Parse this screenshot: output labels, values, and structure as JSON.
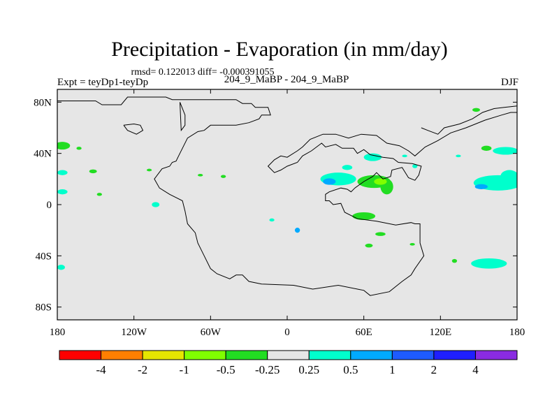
{
  "title": "Precipitation - Evaporation (in mm/day)",
  "stats": "rmsd= 0.122013 diff= -0.000391055",
  "subtitle_left": "Expt = teyDp1-teyDp",
  "subtitle_center": "204_9_MaBP - 204_9_MaBP",
  "subtitle_right": "DJF",
  "map": {
    "lon_range": [
      -180,
      180
    ],
    "lat_range": [
      -90,
      90
    ],
    "x_ticks": [
      {
        "value": -180,
        "label": "180"
      },
      {
        "value": -120,
        "label": "120W"
      },
      {
        "value": -60,
        "label": "60W"
      },
      {
        "value": 0,
        "label": "0"
      },
      {
        "value": 60,
        "label": "60E"
      },
      {
        "value": 120,
        "label": "120E"
      },
      {
        "value": 180,
        "label": "180"
      }
    ],
    "y_ticks": [
      {
        "value": 80,
        "label": "80N"
      },
      {
        "value": 40,
        "label": "40N"
      },
      {
        "value": 0,
        "label": "0"
      },
      {
        "value": -40,
        "label": "40S"
      },
      {
        "value": -80,
        "label": "80S"
      }
    ],
    "background_color": "#e6e6e6"
  },
  "colorbar": {
    "colors": [
      "#ff0000",
      "#ff7f00",
      "#e6e600",
      "#80ff00",
      "#22dd22",
      "#e6e6e6",
      "#00ffcc",
      "#00aaff",
      "#1e5bff",
      "#1f1fff",
      "#8a2be2"
    ],
    "labels": [
      "-4",
      "-2",
      "-1",
      "-0.5",
      "-0.25",
      "0.25",
      "0.5",
      "1",
      "2",
      "4"
    ]
  },
  "anomalies": [
    {
      "lon": -176,
      "lat": 46,
      "rx": 6,
      "ry": 3,
      "color": "#22dd22"
    },
    {
      "lon": -163,
      "lat": 44,
      "rx": 2,
      "ry": 1.2,
      "color": "#22dd22"
    },
    {
      "lon": -176,
      "lat": 25,
      "rx": 4,
      "ry": 2,
      "color": "#00ffcc"
    },
    {
      "lon": -176,
      "lat": 10,
      "rx": 4,
      "ry": 2,
      "color": "#00ffcc"
    },
    {
      "lon": -152,
      "lat": 26,
      "rx": 3,
      "ry": 1.5,
      "color": "#22dd22"
    },
    {
      "lon": -147,
      "lat": 8,
      "rx": 2,
      "ry": 1.2,
      "color": "#22dd22"
    },
    {
      "lon": -108,
      "lat": 27,
      "rx": 2,
      "ry": 1,
      "color": "#22dd22"
    },
    {
      "lon": -68,
      "lat": 23,
      "rx": 2,
      "ry": 1,
      "color": "#22dd22"
    },
    {
      "lon": -50,
      "lat": 22,
      "rx": 2,
      "ry": 1.2,
      "color": "#22dd22"
    },
    {
      "lon": -103,
      "lat": 0,
      "rx": 3,
      "ry": 2,
      "color": "#00ffcc"
    },
    {
      "lon": -12,
      "lat": -12,
      "rx": 2,
      "ry": 1.2,
      "color": "#00ffcc"
    },
    {
      "lon": 8,
      "lat": -20,
      "rx": 2,
      "ry": 2,
      "color": "#00aaff"
    },
    {
      "lon": 40,
      "lat": 20,
      "rx": 14,
      "ry": 5,
      "color": "#00ffcc"
    },
    {
      "lon": 33,
      "lat": 18,
      "rx": 5,
      "ry": 2.5,
      "color": "#00aaff"
    },
    {
      "lon": 47,
      "lat": 29,
      "rx": 4,
      "ry": 2,
      "color": "#00ffcc"
    },
    {
      "lon": 67,
      "lat": 37,
      "rx": 7,
      "ry": 3,
      "color": "#00ffcc"
    },
    {
      "lon": 68,
      "lat": 18,
      "rx": 13,
      "ry": 5,
      "color": "#22dd22"
    },
    {
      "lon": 78,
      "lat": 14,
      "rx": 5,
      "ry": 6,
      "color": "#22dd22"
    },
    {
      "lon": 73,
      "lat": 18,
      "rx": 5,
      "ry": 2.5,
      "color": "#80ff00"
    },
    {
      "lon": 60,
      "lat": -9,
      "rx": 9,
      "ry": 3,
      "color": "#22dd22"
    },
    {
      "lon": 73,
      "lat": -23,
      "rx": 4,
      "ry": 1.5,
      "color": "#22dd22"
    },
    {
      "lon": 64,
      "lat": -32,
      "rx": 3,
      "ry": 1.5,
      "color": "#22dd22"
    },
    {
      "lon": 98,
      "lat": -31,
      "rx": 2,
      "ry": 1,
      "color": "#22dd22"
    },
    {
      "lon": 131,
      "lat": -44,
      "rx": 2,
      "ry": 1.5,
      "color": "#22dd22"
    },
    {
      "lon": 158,
      "lat": -46,
      "rx": 14,
      "ry": 4,
      "color": "#00ffcc"
    },
    {
      "lon": -177,
      "lat": -49,
      "rx": 3,
      "ry": 2,
      "color": "#00ffcc"
    },
    {
      "lon": 165,
      "lat": 17,
      "rx": 19,
      "ry": 6,
      "color": "#00ffcc"
    },
    {
      "lon": 174,
      "lat": 22,
      "rx": 7,
      "ry": 5,
      "color": "#00ffcc"
    },
    {
      "lon": 152,
      "lat": 14,
      "rx": 5,
      "ry": 2,
      "color": "#00aaff"
    },
    {
      "lon": 171,
      "lat": 42,
      "rx": 10,
      "ry": 3,
      "color": "#00ffcc"
    },
    {
      "lon": 156,
      "lat": 44,
      "rx": 4,
      "ry": 2,
      "color": "#22dd22"
    },
    {
      "lon": 148,
      "lat": 74,
      "rx": 3,
      "ry": 1.5,
      "color": "#22dd22"
    },
    {
      "lon": 134,
      "lat": 38,
      "rx": 2,
      "ry": 1,
      "color": "#00ffcc"
    },
    {
      "lon": 92,
      "lat": 38,
      "rx": 2,
      "ry": 1,
      "color": "#00ffcc"
    },
    {
      "lon": 100,
      "lat": 30,
      "rx": 2,
      "ry": 1.5,
      "color": "#00ffcc"
    }
  ],
  "coastline": [
    [
      -180,
      81
    ],
    [
      -150,
      81
    ],
    [
      -145,
      78
    ],
    [
      -130,
      78
    ],
    [
      -125,
      84
    ],
    [
      -95,
      84
    ],
    [
      -90,
      82
    ],
    [
      -40,
      82
    ],
    [
      -35,
      79
    ],
    [
      -28,
      79
    ],
    [
      -25,
      76
    ],
    [
      -15,
      76
    ],
    [
      -13,
      70
    ],
    [
      -20,
      70
    ],
    [
      -22,
      67
    ],
    [
      -30,
      64
    ],
    [
      -40,
      62
    ],
    [
      -60,
      62
    ],
    [
      -65,
      58
    ],
    [
      -70,
      57
    ],
    [
      -78,
      52
    ],
    [
      -82,
      44
    ],
    [
      -85,
      38
    ],
    [
      -87,
      34
    ],
    [
      -90,
      33
    ],
    [
      -92,
      30
    ],
    [
      -98,
      28
    ],
    [
      -104,
      20
    ],
    [
      -100,
      13
    ],
    [
      -92,
      8
    ],
    [
      -82,
      3
    ],
    [
      -80,
      -5
    ],
    [
      -78,
      -15
    ],
    [
      -72,
      -22
    ],
    [
      -70,
      -30
    ],
    [
      -65,
      -40
    ],
    [
      -60,
      -50
    ],
    [
      -55,
      -54
    ],
    [
      -45,
      -58
    ],
    [
      -40,
      -55
    ],
    [
      -35,
      -55
    ],
    [
      -30,
      -60
    ],
    [
      -20,
      -62
    ],
    [
      5,
      -63
    ],
    [
      20,
      -66
    ],
    [
      40,
      -63
    ],
    [
      55,
      -66
    ],
    [
      60,
      -67
    ],
    [
      65,
      -71
    ],
    [
      80,
      -68
    ],
    [
      90,
      -60
    ],
    [
      97,
      -55
    ],
    [
      100,
      -50
    ],
    [
      107,
      -40
    ],
    [
      104,
      -30
    ],
    [
      104,
      -18
    ],
    [
      104,
      -15
    ],
    [
      100,
      -15
    ],
    [
      97,
      -14
    ],
    [
      85,
      -16
    ],
    [
      70,
      -13
    ],
    [
      55,
      -11
    ],
    [
      45,
      -6
    ],
    [
      42,
      1
    ],
    [
      36,
      0
    ],
    [
      33,
      3
    ],
    [
      30,
      3
    ],
    [
      30,
      8
    ],
    [
      33,
      10
    ],
    [
      42,
      13
    ],
    [
      47,
      12
    ],
    [
      50,
      10
    ],
    [
      53,
      13
    ],
    [
      60,
      18
    ],
    [
      67,
      22
    ],
    [
      70,
      25
    ],
    [
      75,
      20
    ],
    [
      81,
      22
    ],
    [
      82,
      27
    ],
    [
      90,
      29
    ],
    [
      95,
      21
    ],
    [
      100,
      19
    ],
    [
      103,
      23
    ],
    [
      105,
      30
    ],
    [
      98,
      32
    ],
    [
      87,
      33
    ],
    [
      83,
      36
    ],
    [
      75,
      37
    ],
    [
      65,
      39
    ],
    [
      60,
      43
    ],
    [
      55,
      40
    ],
    [
      52,
      44
    ],
    [
      43,
      44
    ],
    [
      38,
      47
    ],
    [
      30,
      45
    ],
    [
      27,
      48
    ],
    [
      19,
      42
    ],
    [
      12,
      38
    ],
    [
      8,
      33
    ],
    [
      0,
      30
    ],
    [
      -5,
      27
    ],
    [
      -10,
      25
    ],
    [
      -15,
      30
    ],
    [
      -10,
      35
    ],
    [
      -5,
      38
    ],
    [
      0,
      37
    ],
    [
      8,
      42
    ],
    [
      12,
      45
    ],
    [
      18,
      51
    ],
    [
      28,
      55
    ],
    [
      38,
      55
    ],
    [
      48,
      52
    ],
    [
      58,
      55
    ],
    [
      70,
      54
    ],
    [
      78,
      48
    ],
    [
      88,
      46
    ],
    [
      95,
      42
    ],
    [
      100,
      38
    ],
    [
      108,
      45
    ],
    [
      118,
      50
    ],
    [
      128,
      56
    ],
    [
      140,
      60
    ],
    [
      155,
      66
    ],
    [
      168,
      70
    ],
    [
      175,
      72
    ],
    [
      180,
      72
    ]
  ],
  "coastline2": [
    [
      105,
      60
    ],
    [
      110,
      58
    ],
    [
      118,
      55
    ],
    [
      123,
      60
    ],
    [
      135,
      63
    ],
    [
      145,
      67
    ],
    [
      153,
      72
    ],
    [
      162,
      75
    ],
    [
      170,
      76
    ],
    [
      180,
      77
    ]
  ],
  "greenland": [
    [
      -84,
      80
    ],
    [
      -83,
      58
    ],
    [
      -80,
      62
    ],
    [
      -80,
      70
    ],
    [
      -84,
      80
    ]
  ],
  "arctic_islands": [
    [
      -128,
      62
    ],
    [
      -125,
      58
    ],
    [
      -118,
      55
    ],
    [
      -113,
      58
    ],
    [
      -115,
      62
    ],
    [
      -120,
      63
    ],
    [
      -128,
      62
    ]
  ]
}
